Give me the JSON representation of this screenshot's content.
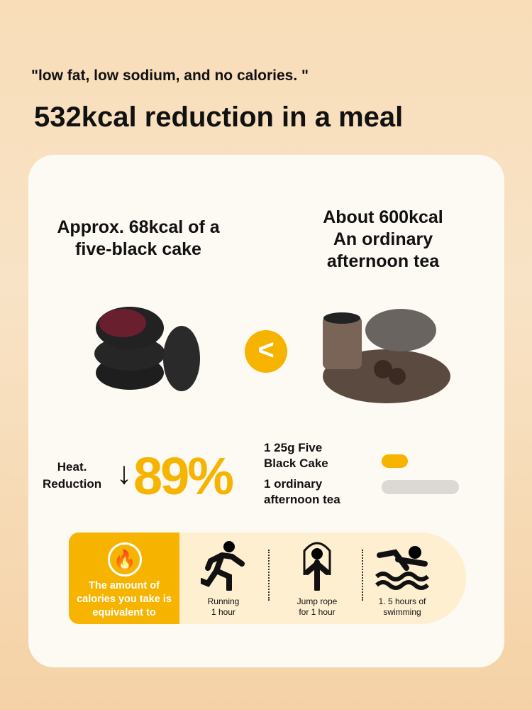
{
  "header": {
    "quote": "\"low fat, low sodium, and no calories. \"",
    "title": "532kcal reduction in a meal"
  },
  "comparison": {
    "left_label": "Approx. 68kcal of a five-black cake",
    "right_label_1": "About 600kcal",
    "right_label_2": "An ordinary afternoon tea",
    "symbol": "<"
  },
  "reduction": {
    "label_1": "Heat.",
    "label_2": "Reduction",
    "arrow": "↓",
    "percent": "89%"
  },
  "bars": [
    {
      "label_1": "1 25g Five",
      "label_2": "Black Cake",
      "value_kcal": 68,
      "color": "#f6b400"
    },
    {
      "label_1": "1 ordinary",
      "label_2": "afternoon tea",
      "value_kcal": 600,
      "color": "#dcd8d3"
    }
  ],
  "equivalent": {
    "icon": "fire-icon",
    "text": "The amount of calories you take is equivalent to",
    "activities": [
      {
        "icon": "running-icon",
        "line1": "Running",
        "line2": "1 hour"
      },
      {
        "icon": "jump-rope-icon",
        "line1": "Jump rope",
        "line2": "for 1 hour"
      },
      {
        "icon": "swimming-icon",
        "line1": "1. 5 hours of",
        "line2": "swimming"
      }
    ]
  },
  "colors": {
    "accent": "#f6b400",
    "card": "#fdf9f3",
    "band": "#fdefcf"
  }
}
